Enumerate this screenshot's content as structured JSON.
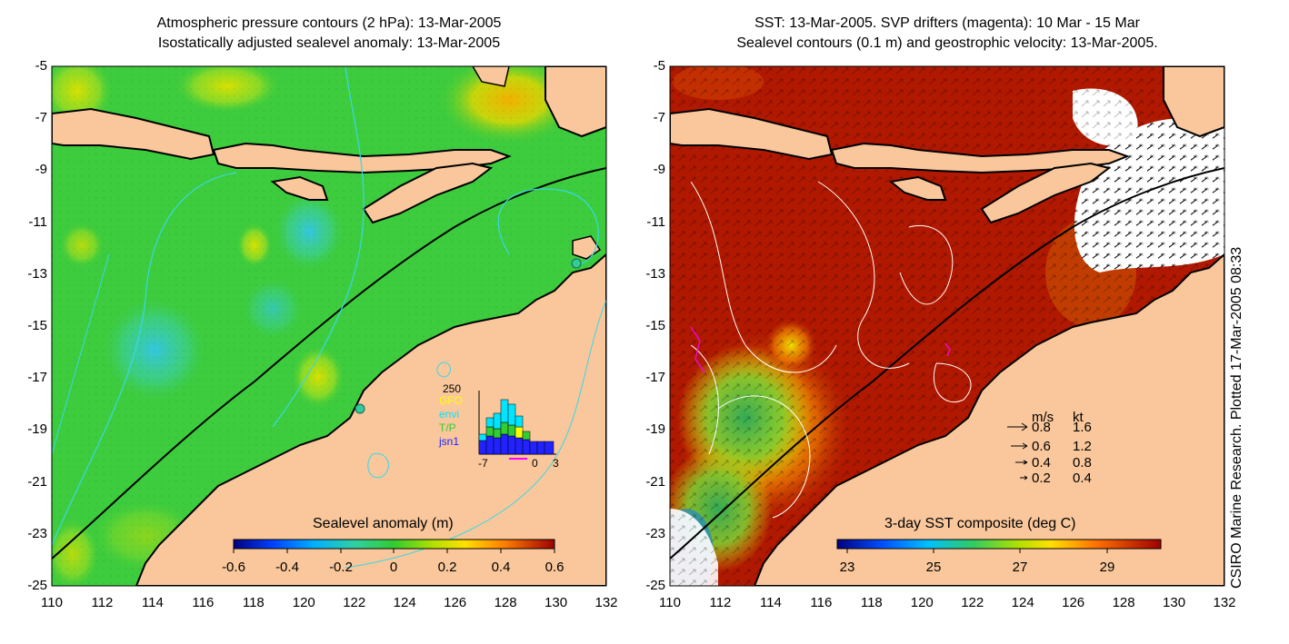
{
  "left_panel": {
    "title_line1": "Atmospheric pressure contours (2 hPa): 13-Mar-2005",
    "title_line2": "Isostatically adjusted sealevel anomaly: 13-Mar-2005",
    "colorbar": {
      "label": "Sealevel anomaly (m)",
      "ticks": [
        "-0.6",
        "-0.4",
        "-0.2",
        "0",
        "0.2",
        "0.4",
        "0.6"
      ]
    },
    "histogram": {
      "ymax_label": "250",
      "legend": [
        "GFO",
        "envi",
        "T/P",
        "jsn1"
      ],
      "legend_colors": [
        "#ffff00",
        "#00e5ff",
        "#33cc33",
        "#2222ff"
      ],
      "x_ticks": [
        "-7",
        "0",
        "3"
      ]
    }
  },
  "right_panel": {
    "title_line1": "SST: 13-Mar-2005. SVP drifters (magenta): 10 Mar - 15 Mar",
    "title_line2": "Sealevel contours (0.1 m) and geostrophic velocity: 13-Mar-2005.",
    "colorbar": {
      "label": "3-day SST composite (deg C)",
      "ticks": [
        "23",
        "25",
        "27",
        "29"
      ]
    },
    "velocity_legend": {
      "header_ms": "m/s",
      "header_kt": "kt",
      "rows": [
        {
          "ms": "0.8",
          "kt": "1.6"
        },
        {
          "ms": "0.6",
          "kt": "1.2"
        },
        {
          "ms": "0.4",
          "kt": "0.8"
        },
        {
          "ms": "0.2",
          "kt": "0.4"
        }
      ]
    }
  },
  "axes": {
    "y_ticks": [
      "-5",
      "-7",
      "-9",
      "-11",
      "-13",
      "-15",
      "-17",
      "-19",
      "-21",
      "-23",
      "-25"
    ],
    "x_ticks": [
      "110",
      "112",
      "114",
      "116",
      "118",
      "120",
      "122",
      "124",
      "126",
      "128",
      "130",
      "132"
    ]
  },
  "footer": "CSIRO Marine Research. Plotted 17-Mar-2005 08:33",
  "colors": {
    "land": "#f9c79b",
    "sea_green": "#3dcc3d",
    "sst_red": "#b01800"
  }
}
